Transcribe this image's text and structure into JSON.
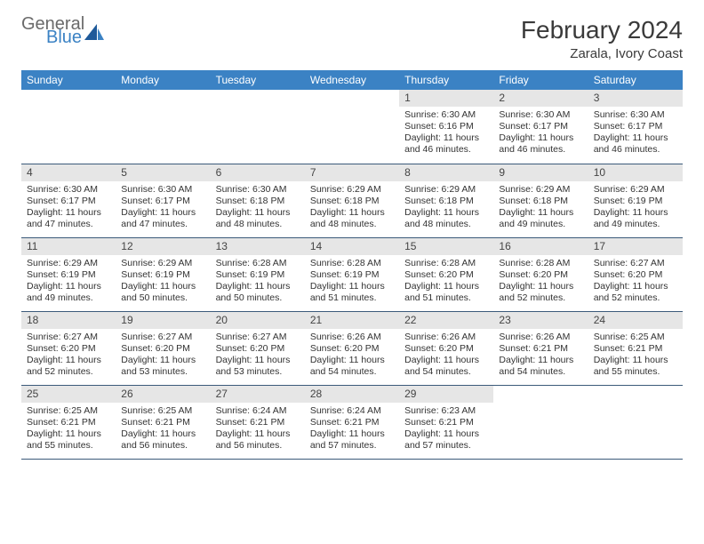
{
  "logo": {
    "general": "General",
    "blue": "Blue"
  },
  "title": "February 2024",
  "location": "Zarala, Ivory Coast",
  "headers": [
    "Sunday",
    "Monday",
    "Tuesday",
    "Wednesday",
    "Thursday",
    "Friday",
    "Saturday"
  ],
  "colors": {
    "header_bg": "#3b82c4",
    "header_text": "#ffffff",
    "daynum_bg": "#e6e6e6",
    "border": "#3b5a7a",
    "logo_gray": "#6a6a6a",
    "logo_blue": "#3b82c4"
  },
  "weeks": [
    [
      {
        "empty": true
      },
      {
        "empty": true
      },
      {
        "empty": true
      },
      {
        "empty": true
      },
      {
        "num": "1",
        "sunrise": "Sunrise: 6:30 AM",
        "sunset": "Sunset: 6:16 PM",
        "day1": "Daylight: 11 hours",
        "day2": "and 46 minutes."
      },
      {
        "num": "2",
        "sunrise": "Sunrise: 6:30 AM",
        "sunset": "Sunset: 6:17 PM",
        "day1": "Daylight: 11 hours",
        "day2": "and 46 minutes."
      },
      {
        "num": "3",
        "sunrise": "Sunrise: 6:30 AM",
        "sunset": "Sunset: 6:17 PM",
        "day1": "Daylight: 11 hours",
        "day2": "and 46 minutes."
      }
    ],
    [
      {
        "num": "4",
        "sunrise": "Sunrise: 6:30 AM",
        "sunset": "Sunset: 6:17 PM",
        "day1": "Daylight: 11 hours",
        "day2": "and 47 minutes."
      },
      {
        "num": "5",
        "sunrise": "Sunrise: 6:30 AM",
        "sunset": "Sunset: 6:17 PM",
        "day1": "Daylight: 11 hours",
        "day2": "and 47 minutes."
      },
      {
        "num": "6",
        "sunrise": "Sunrise: 6:30 AM",
        "sunset": "Sunset: 6:18 PM",
        "day1": "Daylight: 11 hours",
        "day2": "and 48 minutes."
      },
      {
        "num": "7",
        "sunrise": "Sunrise: 6:29 AM",
        "sunset": "Sunset: 6:18 PM",
        "day1": "Daylight: 11 hours",
        "day2": "and 48 minutes."
      },
      {
        "num": "8",
        "sunrise": "Sunrise: 6:29 AM",
        "sunset": "Sunset: 6:18 PM",
        "day1": "Daylight: 11 hours",
        "day2": "and 48 minutes."
      },
      {
        "num": "9",
        "sunrise": "Sunrise: 6:29 AM",
        "sunset": "Sunset: 6:18 PM",
        "day1": "Daylight: 11 hours",
        "day2": "and 49 minutes."
      },
      {
        "num": "10",
        "sunrise": "Sunrise: 6:29 AM",
        "sunset": "Sunset: 6:19 PM",
        "day1": "Daylight: 11 hours",
        "day2": "and 49 minutes."
      }
    ],
    [
      {
        "num": "11",
        "sunrise": "Sunrise: 6:29 AM",
        "sunset": "Sunset: 6:19 PM",
        "day1": "Daylight: 11 hours",
        "day2": "and 49 minutes."
      },
      {
        "num": "12",
        "sunrise": "Sunrise: 6:29 AM",
        "sunset": "Sunset: 6:19 PM",
        "day1": "Daylight: 11 hours",
        "day2": "and 50 minutes."
      },
      {
        "num": "13",
        "sunrise": "Sunrise: 6:28 AM",
        "sunset": "Sunset: 6:19 PM",
        "day1": "Daylight: 11 hours",
        "day2": "and 50 minutes."
      },
      {
        "num": "14",
        "sunrise": "Sunrise: 6:28 AM",
        "sunset": "Sunset: 6:19 PM",
        "day1": "Daylight: 11 hours",
        "day2": "and 51 minutes."
      },
      {
        "num": "15",
        "sunrise": "Sunrise: 6:28 AM",
        "sunset": "Sunset: 6:20 PM",
        "day1": "Daylight: 11 hours",
        "day2": "and 51 minutes."
      },
      {
        "num": "16",
        "sunrise": "Sunrise: 6:28 AM",
        "sunset": "Sunset: 6:20 PM",
        "day1": "Daylight: 11 hours",
        "day2": "and 52 minutes."
      },
      {
        "num": "17",
        "sunrise": "Sunrise: 6:27 AM",
        "sunset": "Sunset: 6:20 PM",
        "day1": "Daylight: 11 hours",
        "day2": "and 52 minutes."
      }
    ],
    [
      {
        "num": "18",
        "sunrise": "Sunrise: 6:27 AM",
        "sunset": "Sunset: 6:20 PM",
        "day1": "Daylight: 11 hours",
        "day2": "and 52 minutes."
      },
      {
        "num": "19",
        "sunrise": "Sunrise: 6:27 AM",
        "sunset": "Sunset: 6:20 PM",
        "day1": "Daylight: 11 hours",
        "day2": "and 53 minutes."
      },
      {
        "num": "20",
        "sunrise": "Sunrise: 6:27 AM",
        "sunset": "Sunset: 6:20 PM",
        "day1": "Daylight: 11 hours",
        "day2": "and 53 minutes."
      },
      {
        "num": "21",
        "sunrise": "Sunrise: 6:26 AM",
        "sunset": "Sunset: 6:20 PM",
        "day1": "Daylight: 11 hours",
        "day2": "and 54 minutes."
      },
      {
        "num": "22",
        "sunrise": "Sunrise: 6:26 AM",
        "sunset": "Sunset: 6:20 PM",
        "day1": "Daylight: 11 hours",
        "day2": "and 54 minutes."
      },
      {
        "num": "23",
        "sunrise": "Sunrise: 6:26 AM",
        "sunset": "Sunset: 6:21 PM",
        "day1": "Daylight: 11 hours",
        "day2": "and 54 minutes."
      },
      {
        "num": "24",
        "sunrise": "Sunrise: 6:25 AM",
        "sunset": "Sunset: 6:21 PM",
        "day1": "Daylight: 11 hours",
        "day2": "and 55 minutes."
      }
    ],
    [
      {
        "num": "25",
        "sunrise": "Sunrise: 6:25 AM",
        "sunset": "Sunset: 6:21 PM",
        "day1": "Daylight: 11 hours",
        "day2": "and 55 minutes."
      },
      {
        "num": "26",
        "sunrise": "Sunrise: 6:25 AM",
        "sunset": "Sunset: 6:21 PM",
        "day1": "Daylight: 11 hours",
        "day2": "and 56 minutes."
      },
      {
        "num": "27",
        "sunrise": "Sunrise: 6:24 AM",
        "sunset": "Sunset: 6:21 PM",
        "day1": "Daylight: 11 hours",
        "day2": "and 56 minutes."
      },
      {
        "num": "28",
        "sunrise": "Sunrise: 6:24 AM",
        "sunset": "Sunset: 6:21 PM",
        "day1": "Daylight: 11 hours",
        "day2": "and 57 minutes."
      },
      {
        "num": "29",
        "sunrise": "Sunrise: 6:23 AM",
        "sunset": "Sunset: 6:21 PM",
        "day1": "Daylight: 11 hours",
        "day2": "and 57 minutes."
      },
      {
        "empty": true
      },
      {
        "empty": true
      }
    ]
  ]
}
